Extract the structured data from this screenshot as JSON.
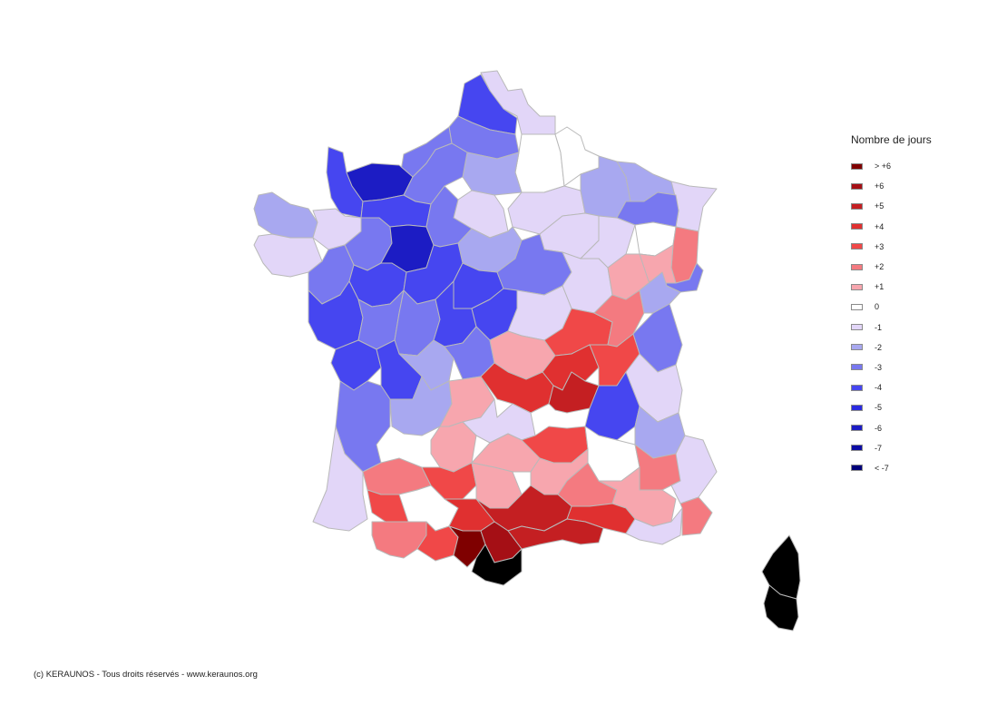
{
  "legend": {
    "title": "Nombre de jours",
    "items": [
      {
        "label": "> +6",
        "color": "#7f0000"
      },
      {
        "label": "+6",
        "color": "#a50f15"
      },
      {
        "label": "+5",
        "color": "#c41f22"
      },
      {
        "label": "+4",
        "color": "#e03030"
      },
      {
        "label": "+3",
        "color": "#f04848"
      },
      {
        "label": "+2",
        "color": "#f47a80"
      },
      {
        "label": "+1",
        "color": "#f7a6ae"
      },
      {
        "label": "0",
        "color": "#ffffff"
      },
      {
        "label": "-1",
        "color": "#e2d6f8"
      },
      {
        "label": "-2",
        "color": "#a8a8f0"
      },
      {
        "label": "-3",
        "color": "#7878f0"
      },
      {
        "label": "-4",
        "color": "#4646f0"
      },
      {
        "label": "-5",
        "color": "#2a2ae0"
      },
      {
        "label": "-6",
        "color": "#1c1cc4"
      },
      {
        "label": "-7",
        "color": "#0c0ca4"
      },
      {
        "label": "< -7",
        "color": "#00007a"
      }
    ]
  },
  "credit": "(c) KERAUNOS - Tous droits réservés - www.keraunos.org",
  "departments": [
    {
      "name": "nord",
      "value": -1
    },
    {
      "name": "pas-de-calais",
      "value": -4
    },
    {
      "name": "somme",
      "value": -3
    },
    {
      "name": "aisne",
      "value": 0
    },
    {
      "name": "ardennes",
      "value": 0
    },
    {
      "name": "seine-maritime",
      "value": -3
    },
    {
      "name": "oise",
      "value": -2
    },
    {
      "name": "manche",
      "value": -4
    },
    {
      "name": "calvados",
      "value": -6
    },
    {
      "name": "eure",
      "value": -3
    },
    {
      "name": "ile-de-france",
      "value": -1
    },
    {
      "name": "marne",
      "value": -1
    },
    {
      "name": "meuse",
      "value": -2
    },
    {
      "name": "moselle",
      "value": -2
    },
    {
      "name": "bas-rhin",
      "value": -1
    },
    {
      "name": "meurthe-et-moselle",
      "value": -3
    },
    {
      "name": "finistere",
      "value": -2
    },
    {
      "name": "cotes-d-armor",
      "value": -1
    },
    {
      "name": "ille-et-vilaine",
      "value": -3
    },
    {
      "name": "orne",
      "value": -4
    },
    {
      "name": "sarthe",
      "value": -6
    },
    {
      "name": "eure-et-loir",
      "value": -3
    },
    {
      "name": "loiret",
      "value": -2
    },
    {
      "name": "aube",
      "value": -1
    },
    {
      "name": "haute-marne",
      "value": -1
    },
    {
      "name": "vosges",
      "value": 0
    },
    {
      "name": "haut-rhin",
      "value": 2
    },
    {
      "name": "morbihan",
      "value": -1
    },
    {
      "name": "loire-atlantique",
      "value": -3
    },
    {
      "name": "maine-et-loire",
      "value": -4
    },
    {
      "name": "indre-et-loire",
      "value": -4
    },
    {
      "name": "loir-et-cher",
      "value": -4
    },
    {
      "name": "yonne",
      "value": -3
    },
    {
      "name": "cote-d-or",
      "value": -1
    },
    {
      "name": "haute-saone",
      "value": 1
    },
    {
      "name": "territoire-de-belfort",
      "value": 1
    },
    {
      "name": "vendee",
      "value": -3
    },
    {
      "name": "deux-sevres",
      "value": -4
    },
    {
      "name": "vienne",
      "value": -3
    },
    {
      "name": "indre",
      "value": -3
    },
    {
      "name": "cher",
      "value": -4
    },
    {
      "name": "nievre",
      "value": -4
    },
    {
      "name": "saone-et-loire",
      "value": -1
    },
    {
      "name": "jura",
      "value": 3
    },
    {
      "name": "doubs",
      "value": 2
    },
    {
      "name": "charente-maritime",
      "value": -2
    },
    {
      "name": "charente",
      "value": -4
    },
    {
      "name": "haute-vienne",
      "value": -4
    },
    {
      "name": "creuse",
      "value": -2
    },
    {
      "name": "allier",
      "value": -3
    },
    {
      "name": "rhone",
      "value": 1
    },
    {
      "name": "ain",
      "value": 4
    },
    {
      "name": "haute-savoie",
      "value": 3
    },
    {
      "name": "gironde",
      "value": -3
    },
    {
      "name": "dordogne",
      "value": -1
    },
    {
      "name": "correze",
      "value": -3
    },
    {
      "name": "puy-de-dome",
      "value": -2
    },
    {
      "name": "loire",
      "value": 1
    },
    {
      "name": "isere",
      "value": 4
    },
    {
      "name": "savoie",
      "value": 5
    },
    {
      "name": "lot",
      "value": -4
    },
    {
      "name": "cantal",
      "value": -2
    },
    {
      "name": "haute-loire",
      "value": -1
    },
    {
      "name": "ardeche",
      "value": 1
    },
    {
      "name": "drome",
      "value": 1
    },
    {
      "name": "hautes-alpes",
      "value": 3
    },
    {
      "name": "landes",
      "value": 0
    },
    {
      "name": "lot-et-garonne",
      "value": 2
    },
    {
      "name": "tarn-et-garonne",
      "value": -1
    },
    {
      "name": "aveyron",
      "value": -1
    },
    {
      "name": "lozere",
      "value": 2
    },
    {
      "name": "gard",
      "value": 3
    },
    {
      "name": "vaucluse",
      "value": 1
    },
    {
      "name": "alpes-de-haute-provence",
      "value": 1
    },
    {
      "name": "alpes-maritimes",
      "value": 2
    },
    {
      "name": "gers",
      "value": 1
    },
    {
      "name": "haute-garonne",
      "value": 4
    },
    {
      "name": "tarn",
      "value": -1
    },
    {
      "name": "herault",
      "value": 2
    },
    {
      "name": "bouches-du-rhone",
      "value": 3
    },
    {
      "name": "var",
      "value": 0
    },
    {
      "name": "pyrenees-atlantiques",
      "value": 4
    },
    {
      "name": "hautes-pyrenees",
      "value": 5
    },
    {
      "name": "ariege",
      "value": 5
    },
    {
      "name": "aude",
      "value": 2
    },
    {
      "name": "pyrenees-orientales",
      "value": 3
    },
    {
      "name": "haute-corse",
      "value": 7
    },
    {
      "name": "corse-du-sud",
      "value": 6
    }
  ]
}
